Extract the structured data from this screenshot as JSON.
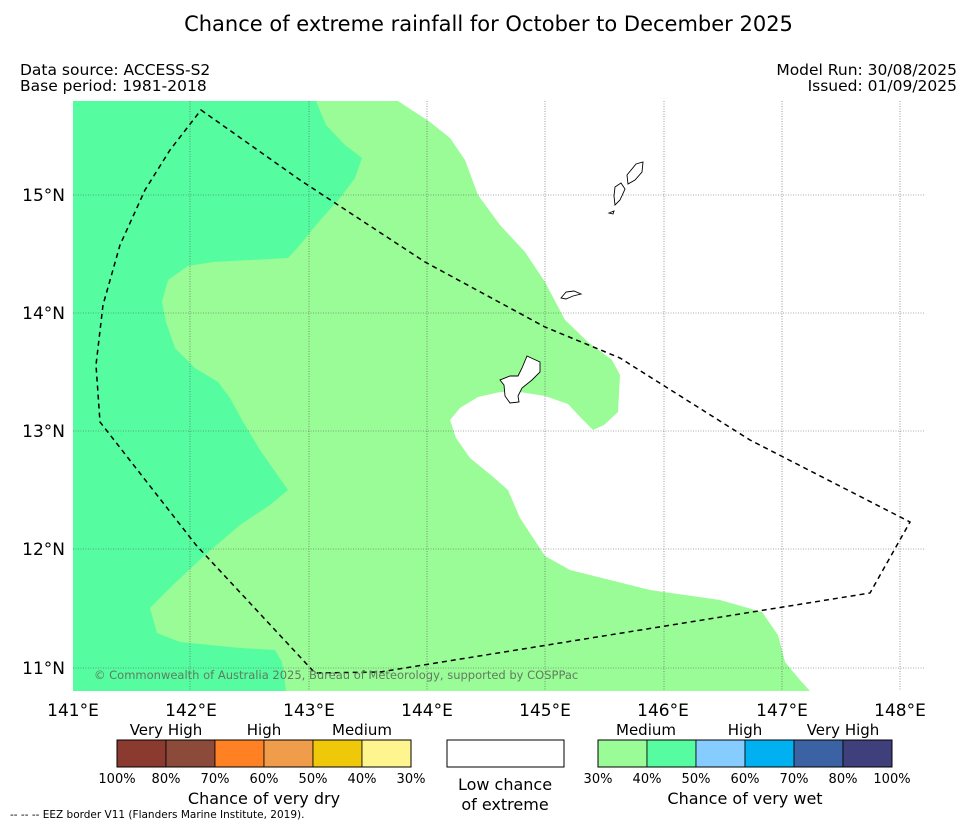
{
  "title": "Chance of extreme rainfall for October to December 2025",
  "meta": {
    "data_source": "Data source: ACCESS-S2",
    "base_period": "Base period: 1981-2018",
    "model_run": "Model Run: 30/08/2025",
    "issued": "Issued: 01/09/2025"
  },
  "map": {
    "lat_labels": [
      "15°N",
      "14°N",
      "13°N",
      "12°N",
      "11°N"
    ],
    "lon_labels": [
      "141°E",
      "142°E",
      "143°E",
      "144°E",
      "145°E",
      "146°E",
      "147°E",
      "148°E"
    ],
    "copyright": "© Commonwealth of Australia 2025, Bureau of Meteorology, supported by COSPPac",
    "colors": {
      "medium_wet": "#9afc96",
      "high_wet": "#55fda0",
      "ocean_low": "#ffffff"
    }
  },
  "legend": {
    "dry": {
      "categories": [
        "Very High",
        "High",
        "Medium"
      ],
      "percentages": [
        "100%",
        "80%",
        "70%",
        "60%",
        "50%",
        "40%",
        "30%"
      ],
      "colors": [
        "#8b3a2f",
        "#8c4a3a",
        "#ff8124",
        "#ef9d4b",
        "#f0c80a",
        "#fef58e"
      ],
      "title": "Chance of very dry"
    },
    "low": {
      "line1": "Low chance",
      "line2": "of extreme",
      "color": "#ffffff"
    },
    "wet": {
      "categories": [
        "Medium",
        "High",
        "Very High"
      ],
      "percentages": [
        "30%",
        "40%",
        "50%",
        "60%",
        "70%",
        "80%",
        "100%"
      ],
      "colors": [
        "#9afc96",
        "#55fda0",
        "#87ccfe",
        "#01b0f0",
        "#3b62a2",
        "#3f3f7c"
      ],
      "title": "Chance of very wet"
    }
  },
  "credits": "--  --  -- EEZ border V11 (Flanders Marine Institute, 2019)."
}
